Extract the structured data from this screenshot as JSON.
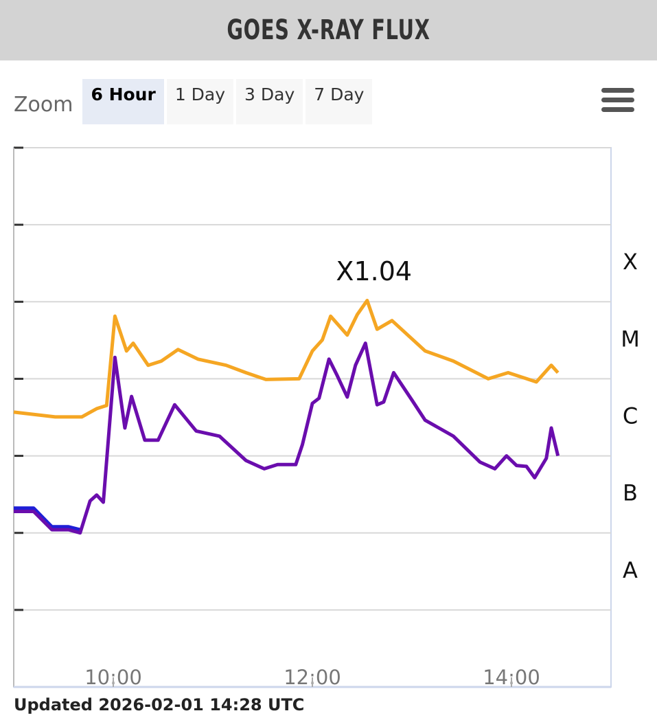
{
  "header": {
    "title": "GOES X-RAY FLUX"
  },
  "zoom": {
    "label": "Zoom",
    "buttons": [
      "6 Hour",
      "1 Day",
      "3 Day",
      "7 Day"
    ],
    "active": 0
  },
  "footer": "Updated 2026-02-01 14:28 UTC",
  "chart_data": {
    "type": "line",
    "log_scale": true,
    "grid": true,
    "xlim": [
      "09:00",
      "15:00"
    ],
    "xticks": [
      "10:00",
      "12:00",
      "14:00"
    ],
    "ylim": [
      1e-09,
      0.01
    ],
    "yticks": [
      1e-09,
      1e-08,
      1e-07,
      1e-06,
      1e-05,
      0.0001,
      0.001,
      0.01
    ],
    "y2lim": [
      1e-09,
      0.01
    ],
    "y2ticks": [
      {
        "value": 3.16e-08,
        "label": "A"
      },
      {
        "value": 3.16e-07,
        "label": "B"
      },
      {
        "value": 3.16e-06,
        "label": "C"
      },
      {
        "value": 3.16e-05,
        "label": "M"
      },
      {
        "value": 0.000316,
        "label": "X"
      }
    ],
    "series": [
      {
        "color": "#f5a623",
        "x": [
          "09:00",
          "09:25",
          "09:41",
          "09:50",
          "09:56",
          "10:01",
          "10:08",
          "10:12",
          "10:21",
          "10:29",
          "10:39",
          "10:51",
          "11:08",
          "11:20",
          "11:32",
          "11:52",
          "12:00",
          "12:06",
          "12:11",
          "12:21",
          "12:27",
          "12:33",
          "12:39",
          "12:48",
          "13:08",
          "13:25",
          "13:46",
          "13:58",
          "14:15",
          "14:24",
          "14:28"
        ],
        "values": [
          3.7e-06,
          3.2e-06,
          3.2e-06,
          4.1e-06,
          4.5e-06,
          6.5e-05,
          2.3e-05,
          2.9e-05,
          1.5e-05,
          1.7e-05,
          2.4e-05,
          1.8e-05,
          1.5e-05,
          1.2e-05,
          9.8e-06,
          1e-05,
          2.3e-05,
          3.2e-05,
          6.5e-05,
          3.7e-05,
          6.8e-05,
          0.000104,
          4.4e-05,
          5.7e-05,
          2.3e-05,
          1.7e-05,
          1e-05,
          1.2e-05,
          9.1e-06,
          1.5e-05,
          1.2e-05
        ]
      },
      {
        "color": "#1f1fd6",
        "x": [
          "09:00",
          "09:12",
          "09:23",
          "09:33",
          "09:40"
        ],
        "values": [
          2.1e-07,
          2.1e-07,
          1.2e-07,
          1.2e-07,
          1.1e-07
        ]
      },
      {
        "color": "#6a0dad",
        "x": [
          "09:00",
          "09:12",
          "09:23",
          "09:33",
          "09:40",
          "09:46",
          "09:50",
          "09:54",
          "10:01",
          "10:07",
          "10:11",
          "10:19",
          "10:27",
          "10:37",
          "10:50",
          "11:04",
          "11:20",
          "11:31",
          "11:39",
          "11:50",
          "11:54",
          "12:00",
          "12:04",
          "12:10",
          "12:15",
          "12:21",
          "12:26",
          "12:32",
          "12:39",
          "12:43",
          "12:49",
          "13:00",
          "13:08",
          "13:25",
          "13:41",
          "13:50",
          "13:57",
          "14:03",
          "14:09",
          "14:14",
          "14:21",
          "14:24",
          "14:28"
        ],
        "values": [
          1.9e-07,
          1.9e-07,
          1.1e-07,
          1.1e-07,
          1e-07,
          2.6e-07,
          3.1e-07,
          2.5e-07,
          1.9e-05,
          2.3e-06,
          5.9e-06,
          1.6e-06,
          1.6e-06,
          4.6e-06,
          2.1e-06,
          1.8e-06,
          8.7e-07,
          6.8e-07,
          7.7e-07,
          7.7e-07,
          1.4e-06,
          4.8e-06,
          5.6e-06,
          1.8e-05,
          1.1e-05,
          5.8e-06,
          1.5e-05,
          2.9e-05,
          4.6e-06,
          5e-06,
          1.2e-05,
          5.3e-06,
          2.9e-06,
          1.8e-06,
          8.3e-07,
          6.8e-07,
          1e-06,
          7.5e-07,
          7.3e-07,
          5.2e-07,
          9.3e-07,
          2.3e-06,
          1e-06
        ]
      }
    ],
    "annotations": [
      {
        "text": "X1.04",
        "x": "12:33",
        "y": 0.000104
      }
    ]
  }
}
